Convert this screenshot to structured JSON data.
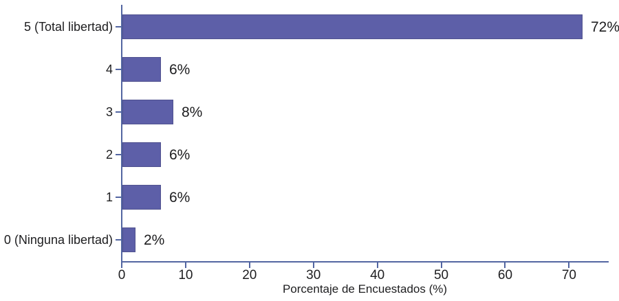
{
  "chart_data": {
    "type": "bar",
    "orientation": "horizontal",
    "title": "",
    "xlabel": "Porcentaje de Encuestados (%)",
    "ylabel": "",
    "categories": [
      "5 (Total libertad)",
      "4",
      "3",
      "2",
      "1",
      "0 (Ninguna libertad)"
    ],
    "values": [
      72,
      6,
      8,
      6,
      6,
      2
    ],
    "value_labels": [
      "72%",
      "6%",
      "8%",
      "6%",
      "6%",
      "2%"
    ],
    "x_ticks": [
      0,
      10,
      20,
      30,
      40,
      50,
      60,
      70
    ],
    "x_tick_labels": [
      "0",
      "10",
      "20",
      "30",
      "40",
      "50",
      "60",
      "70"
    ],
    "xlim": [
      0,
      76.2
    ],
    "grid": false,
    "legend": null
  },
  "colors": {
    "bar_fill": "#5d5fa8",
    "bar_border": "#50528f",
    "axis": "#5265a1",
    "text": "#1d1d1f",
    "background": "#ffffff"
  }
}
